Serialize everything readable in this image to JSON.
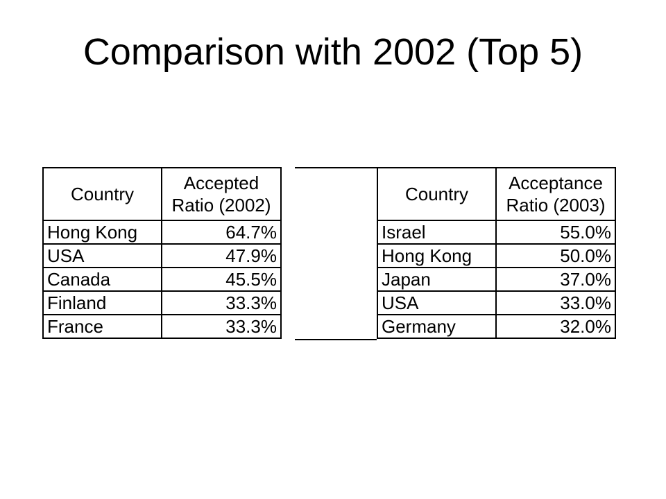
{
  "title": "Comparison with 2002 (Top 5)",
  "table_2002": {
    "headers": {
      "country": "Country",
      "ratio_line1": "Accepted",
      "ratio_line2": "Ratio (2002)"
    },
    "rows": [
      {
        "country": "Hong Kong",
        "value": "64.7%"
      },
      {
        "country": "USA",
        "value": "47.9%"
      },
      {
        "country": "Canada",
        "value": "45.5%"
      },
      {
        "country": "Finland",
        "value": "33.3%"
      },
      {
        "country": "France",
        "value": "33.3%"
      }
    ]
  },
  "table_2003": {
    "headers": {
      "country": "Country",
      "ratio_line1": "Acceptance",
      "ratio_line2": "Ratio (2003)"
    },
    "rows": [
      {
        "country": "Israel",
        "value": "55.0%"
      },
      {
        "country": "Hong Kong",
        "value": "50.0%"
      },
      {
        "country": "Japan",
        "value": "37.0%"
      },
      {
        "country": "USA",
        "value": "33.0%"
      },
      {
        "country": "Germany",
        "value": "32.0%"
      }
    ]
  }
}
